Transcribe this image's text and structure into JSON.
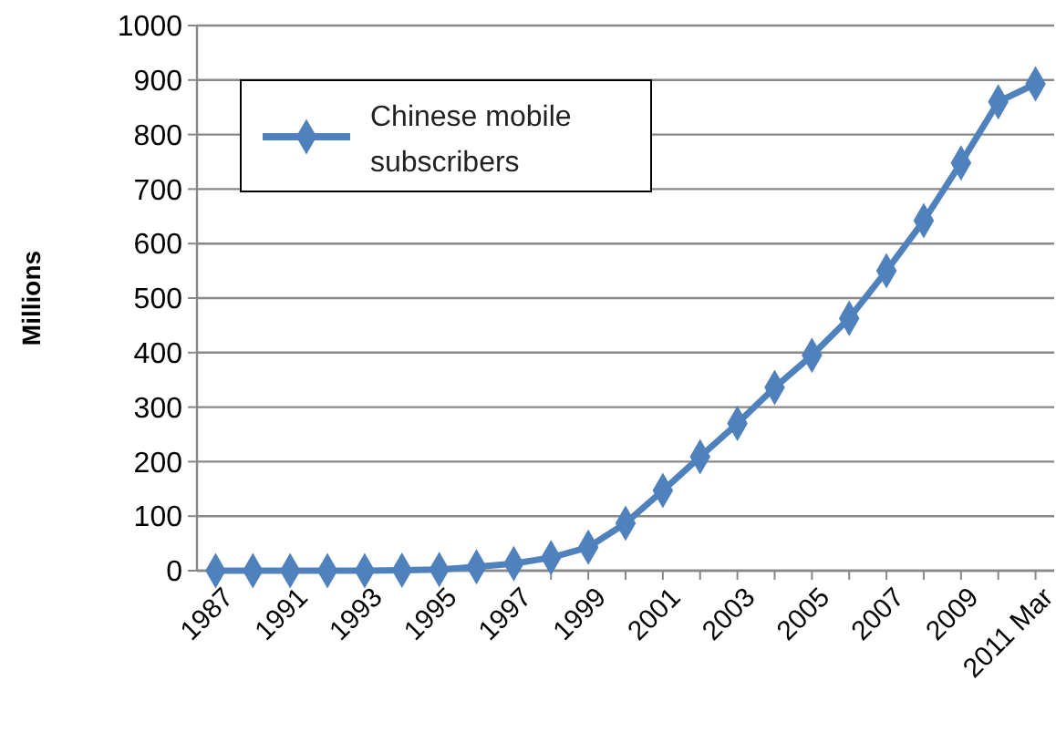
{
  "chart_data": {
    "type": "line",
    "ylabel": "Millions",
    "categories": [
      "1987",
      null,
      "1991",
      null,
      "1993",
      null,
      "1995",
      null,
      "1997",
      null,
      "1999",
      null,
      "2001",
      null,
      "2003",
      null,
      "2005",
      null,
      "2007",
      null,
      "2009",
      null,
      "2011 Mar"
    ],
    "series": [
      {
        "name": "Chinese mobile subscribers",
        "color": "#4f81bd",
        "values": [
          0,
          0,
          0,
          0,
          0,
          1,
          2,
          7,
          13,
          24,
          43,
          87,
          147,
          209,
          270,
          336,
          395,
          463,
          550,
          642,
          748,
          860,
          893
        ]
      }
    ],
    "ylim": [
      0,
      1000
    ],
    "yticks": [
      0,
      100,
      200,
      300,
      400,
      500,
      600,
      700,
      800,
      900,
      1000
    ],
    "grid": "y",
    "legend": "top left",
    "marker": "diamond",
    "line_style": "solid"
  }
}
